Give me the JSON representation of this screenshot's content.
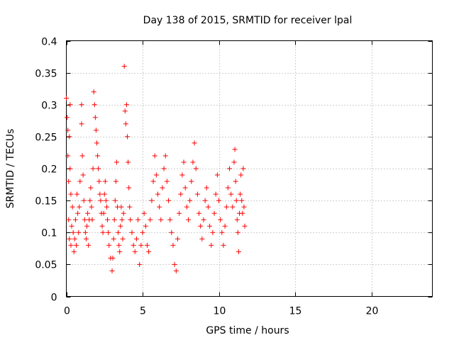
{
  "chart_data": {
    "type": "scatter",
    "title": "Day 138 of 2015, SRMTID for receiver lpal",
    "xlabel": "GPS time / hours",
    "ylabel": "SRMTID / TECUs",
    "xlim": [
      0,
      24
    ],
    "ylim": [
      0,
      0.4
    ],
    "xticks": [
      0,
      5,
      10,
      15,
      20
    ],
    "yticks": [
      0,
      0.05,
      0.1,
      0.15,
      0.2,
      0.25,
      0.3,
      0.35,
      0.4
    ],
    "xtick_labels": [
      "0",
      "5",
      "10",
      "15",
      "20"
    ],
    "ytick_labels": [
      "0",
      "0.05",
      "0.1",
      "0.15",
      "0.2",
      "0.25",
      "0.3",
      "0.35",
      "0.4"
    ],
    "grid": true,
    "marker": "+",
    "color": "#ff0000",
    "series": [
      {
        "points": [
          [
            0.0,
            0.31
          ],
          [
            0.05,
            0.28
          ],
          [
            0.1,
            0.26
          ],
          [
            0.1,
            0.22
          ],
          [
            0.15,
            0.18
          ],
          [
            0.15,
            0.12
          ],
          [
            0.2,
            0.09
          ],
          [
            0.2,
            0.25
          ],
          [
            0.25,
            0.3
          ],
          [
            0.25,
            0.2
          ],
          [
            0.3,
            0.16
          ],
          [
            0.3,
            0.08
          ],
          [
            0.35,
            0.11
          ],
          [
            0.4,
            0.14
          ],
          [
            0.45,
            0.1
          ],
          [
            0.5,
            0.07
          ],
          [
            0.55,
            0.09
          ],
          [
            0.6,
            0.12
          ],
          [
            0.65,
            0.08
          ],
          [
            0.7,
            0.16
          ],
          [
            0.75,
            0.13
          ],
          [
            0.8,
            0.1
          ],
          [
            0.85,
            0.14
          ],
          [
            0.9,
            0.18
          ],
          [
            1.0,
            0.3
          ],
          [
            1.0,
            0.27
          ],
          [
            1.05,
            0.22
          ],
          [
            1.1,
            0.19
          ],
          [
            1.15,
            0.15
          ],
          [
            1.2,
            0.12
          ],
          [
            1.25,
            0.1
          ],
          [
            1.3,
            0.09
          ],
          [
            1.35,
            0.11
          ],
          [
            1.4,
            0.13
          ],
          [
            1.45,
            0.08
          ],
          [
            1.5,
            0.12
          ],
          [
            1.55,
            0.15
          ],
          [
            1.6,
            0.17
          ],
          [
            1.65,
            0.14
          ],
          [
            1.7,
            0.12
          ],
          [
            1.75,
            0.2
          ],
          [
            1.8,
            0.32
          ],
          [
            1.85,
            0.3
          ],
          [
            1.9,
            0.28
          ],
          [
            1.95,
            0.26
          ],
          [
            2.0,
            0.24
          ],
          [
            2.05,
            0.22
          ],
          [
            2.1,
            0.2
          ],
          [
            2.15,
            0.18
          ],
          [
            2.2,
            0.16
          ],
          [
            2.25,
            0.15
          ],
          [
            2.3,
            0.13
          ],
          [
            2.35,
            0.11
          ],
          [
            2.4,
            0.1
          ],
          [
            2.45,
            0.13
          ],
          [
            2.5,
            0.16
          ],
          [
            2.55,
            0.18
          ],
          [
            2.6,
            0.15
          ],
          [
            2.65,
            0.14
          ],
          [
            2.7,
            0.12
          ],
          [
            2.75,
            0.1
          ],
          [
            2.8,
            0.08
          ],
          [
            2.9,
            0.06
          ],
          [
            3.0,
            0.04
          ],
          [
            3.05,
            0.06
          ],
          [
            3.1,
            0.09
          ],
          [
            3.15,
            0.12
          ],
          [
            3.2,
            0.15
          ],
          [
            3.25,
            0.18
          ],
          [
            3.3,
            0.21
          ],
          [
            3.35,
            0.14
          ],
          [
            3.4,
            0.1
          ],
          [
            3.45,
            0.08
          ],
          [
            3.5,
            0.07
          ],
          [
            3.55,
            0.11
          ],
          [
            3.6,
            0.14
          ],
          [
            3.65,
            0.12
          ],
          [
            3.7,
            0.09
          ],
          [
            3.75,
            0.13
          ],
          [
            3.8,
            0.36
          ],
          [
            3.85,
            0.29
          ],
          [
            3.9,
            0.27
          ],
          [
            3.95,
            0.3
          ],
          [
            4.0,
            0.25
          ],
          [
            4.05,
            0.21
          ],
          [
            4.1,
            0.17
          ],
          [
            4.15,
            0.14
          ],
          [
            4.2,
            0.12
          ],
          [
            4.3,
            0.1
          ],
          [
            4.4,
            0.08
          ],
          [
            4.5,
            0.07
          ],
          [
            4.6,
            0.09
          ],
          [
            4.7,
            0.12
          ],
          [
            4.8,
            0.05
          ],
          [
            4.9,
            0.08
          ],
          [
            5.0,
            0.1
          ],
          [
            5.1,
            0.13
          ],
          [
            5.2,
            0.11
          ],
          [
            5.3,
            0.08
          ],
          [
            5.4,
            0.07
          ],
          [
            5.5,
            0.12
          ],
          [
            5.6,
            0.15
          ],
          [
            5.7,
            0.18
          ],
          [
            5.8,
            0.22
          ],
          [
            5.9,
            0.19
          ],
          [
            6.0,
            0.16
          ],
          [
            6.1,
            0.14
          ],
          [
            6.2,
            0.12
          ],
          [
            6.3,
            0.17
          ],
          [
            6.4,
            0.2
          ],
          [
            6.5,
            0.22
          ],
          [
            6.6,
            0.18
          ],
          [
            6.7,
            0.15
          ],
          [
            6.8,
            0.12
          ],
          [
            6.9,
            0.1
          ],
          [
            7.0,
            0.08
          ],
          [
            7.1,
            0.05
          ],
          [
            7.2,
            0.04
          ],
          [
            7.3,
            0.09
          ],
          [
            7.4,
            0.13
          ],
          [
            7.5,
            0.16
          ],
          [
            7.6,
            0.19
          ],
          [
            7.7,
            0.21
          ],
          [
            7.8,
            0.17
          ],
          [
            7.9,
            0.14
          ],
          [
            8.0,
            0.12
          ],
          [
            8.1,
            0.15
          ],
          [
            8.2,
            0.18
          ],
          [
            8.3,
            0.21
          ],
          [
            8.4,
            0.24
          ],
          [
            8.5,
            0.2
          ],
          [
            8.6,
            0.16
          ],
          [
            8.7,
            0.13
          ],
          [
            8.8,
            0.11
          ],
          [
            8.9,
            0.09
          ],
          [
            9.0,
            0.12
          ],
          [
            9.1,
            0.15
          ],
          [
            9.2,
            0.17
          ],
          [
            9.3,
            0.14
          ],
          [
            9.4,
            0.11
          ],
          [
            9.5,
            0.08
          ],
          [
            9.6,
            0.1
          ],
          [
            9.7,
            0.13
          ],
          [
            9.8,
            0.16
          ],
          [
            9.9,
            0.19
          ],
          [
            10.0,
            0.15
          ],
          [
            10.1,
            0.12
          ],
          [
            10.2,
            0.1
          ],
          [
            10.3,
            0.08
          ],
          [
            10.4,
            0.11
          ],
          [
            10.5,
            0.14
          ],
          [
            10.6,
            0.17
          ],
          [
            10.7,
            0.2
          ],
          [
            10.8,
            0.16
          ],
          [
            10.9,
            0.14
          ],
          [
            11.0,
            0.21
          ],
          [
            11.05,
            0.23
          ],
          [
            11.1,
            0.18
          ],
          [
            11.15,
            0.15
          ],
          [
            11.2,
            0.12
          ],
          [
            11.25,
            0.1
          ],
          [
            11.3,
            0.07
          ],
          [
            11.35,
            0.13
          ],
          [
            11.4,
            0.16
          ],
          [
            11.45,
            0.19
          ],
          [
            11.5,
            0.15
          ],
          [
            11.55,
            0.13
          ],
          [
            11.6,
            0.2
          ],
          [
            11.65,
            0.14
          ],
          [
            11.7,
            0.11
          ]
        ]
      }
    ]
  }
}
